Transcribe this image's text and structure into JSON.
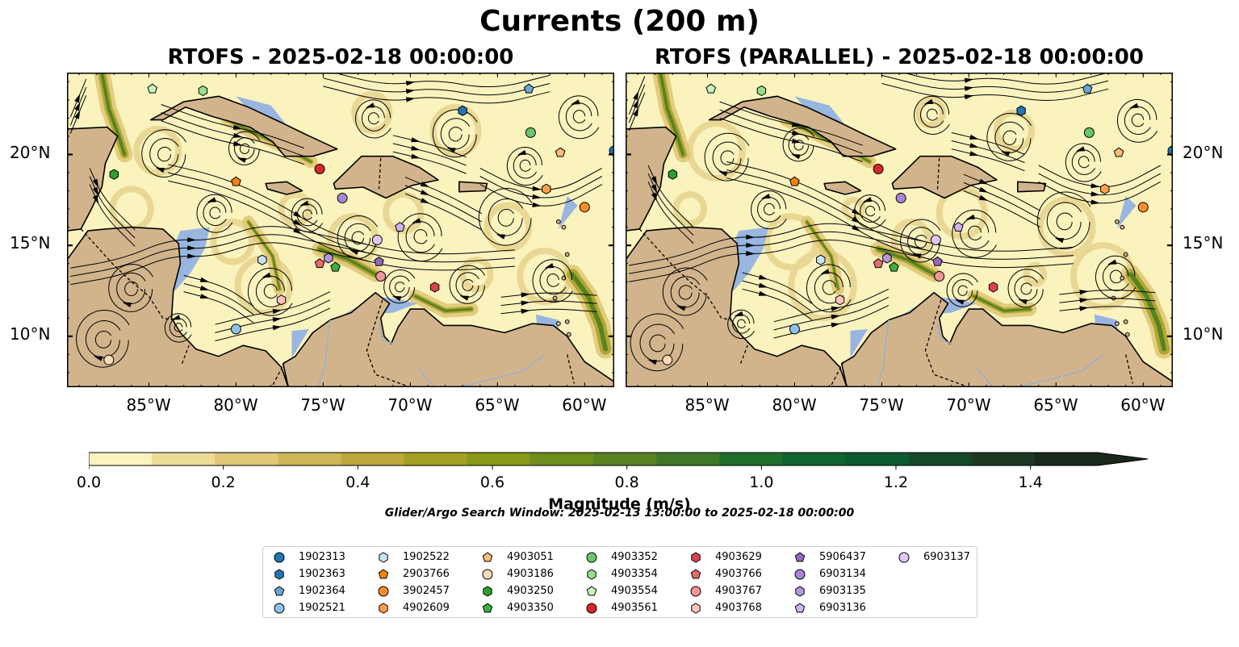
{
  "suptitle": "Currents (200 m)",
  "panels": [
    {
      "title": "RTOFS - 2025-02-18 00:00:00"
    },
    {
      "title": "RTOFS (PARALLEL) - 2025-02-18 00:00:00"
    }
  ],
  "axes": {
    "lon_ticks": [
      "85°W",
      "80°W",
      "75°W",
      "70°W",
      "65°W",
      "60°W"
    ],
    "lon_values": [
      -85,
      -80,
      -75,
      -70,
      -65,
      -60
    ],
    "lat_ticks": [
      "20°N",
      "15°N",
      "10°N"
    ],
    "lat_values": [
      20,
      15,
      10
    ],
    "lon_range": [
      -89.7,
      -58.3
    ],
    "lat_range": [
      7.2,
      24.5
    ]
  },
  "colorbar": {
    "title": "Magnitude (m/s)",
    "ticks": [
      "0.0",
      "0.2",
      "0.4",
      "0.6",
      "0.8",
      "1.0",
      "1.2",
      "1.4"
    ],
    "tick_values": [
      0,
      0.2,
      0.4,
      0.6,
      0.8,
      1.0,
      1.2,
      1.4
    ],
    "range": [
      0,
      1.5
    ],
    "extend": "max",
    "colors": [
      "#faf3be",
      "#eddc98",
      "#e0c878",
      "#cfb656",
      "#bca83a",
      "#a3a025",
      "#88981a",
      "#6f8d1d",
      "#578222",
      "#3f7727",
      "#216e2c",
      "#0f6431",
      "#0d5a30",
      "#15482b",
      "#1e3824",
      "#19281a"
    ]
  },
  "search_window": "Glider/Argo Search Window: 2025-02-13 13:00:00 to 2025-02-18 00:00:00",
  "map_colors": {
    "ocean_low": "#faf3be",
    "land": "#d2b48c",
    "shallow": "#98b6e0",
    "rivers": "#9ab0c8"
  },
  "floats": [
    {
      "id": "1902313",
      "marker": "circle",
      "color": "#1f77b4",
      "lon": -58.3,
      "lat": 20.2
    },
    {
      "id": "1902363",
      "marker": "hexagon",
      "color": "#1f77b4",
      "lon": -67.0,
      "lat": 22.4
    },
    {
      "id": "1902364",
      "marker": "pentagon",
      "color": "#6aa6d8",
      "lon": -63.2,
      "lat": 23.6
    },
    {
      "id": "1902521",
      "marker": "circle",
      "color": "#8cc2e8",
      "lon": -80.0,
      "lat": 10.4
    },
    {
      "id": "1902522",
      "marker": "hexagon",
      "color": "#c9e3f5",
      "lon": -78.5,
      "lat": 14.2
    },
    {
      "id": "2903766",
      "marker": "pentagon",
      "color": "#ff7f0e",
      "lon": -80.0,
      "lat": 18.5
    },
    {
      "id": "3902457",
      "marker": "circle",
      "color": "#ff8c2a",
      "lon": -60.0,
      "lat": 17.1
    },
    {
      "id": "4902609",
      "marker": "hexagon",
      "color": "#ffa04a",
      "lon": -62.2,
      "lat": 18.1
    },
    {
      "id": "4903051",
      "marker": "pentagon",
      "color": "#ffbb78",
      "lon": -61.4,
      "lat": 20.1
    },
    {
      "id": "4903186",
      "marker": "circle",
      "color": "#ffd9b5",
      "lon": -87.3,
      "lat": 8.7
    },
    {
      "id": "4903250",
      "marker": "hexagon",
      "color": "#2ca02c",
      "lon": -87.0,
      "lat": 18.9
    },
    {
      "id": "4903350",
      "marker": "pentagon",
      "color": "#3cb03c",
      "lon": -74.3,
      "lat": 13.8
    },
    {
      "id": "4903352",
      "marker": "circle",
      "color": "#6cc46c",
      "lon": -63.1,
      "lat": 21.2
    },
    {
      "id": "4903354",
      "marker": "hexagon",
      "color": "#98df8a",
      "lon": -81.9,
      "lat": 23.5
    },
    {
      "id": "4903554",
      "marker": "pentagon",
      "color": "#c8f5c0",
      "lon": -84.8,
      "lat": 23.6
    },
    {
      "id": "4903561",
      "marker": "circle",
      "color": "#d62728",
      "lon": -75.2,
      "lat": 19.2
    },
    {
      "id": "4903629",
      "marker": "hexagon",
      "color": "#d9444d",
      "lon": -68.6,
      "lat": 12.7
    },
    {
      "id": "4903766",
      "marker": "pentagon",
      "color": "#e66a6a",
      "lon": -75.2,
      "lat": 14.0
    },
    {
      "id": "4903767",
      "marker": "circle",
      "color": "#f0959a",
      "lon": -71.7,
      "lat": 13.3
    },
    {
      "id": "4903768",
      "marker": "hexagon",
      "color": "#ffc4c0",
      "lon": -77.4,
      "lat": 12.0
    },
    {
      "id": "5906437",
      "marker": "pentagon",
      "color": "#9467bd",
      "lon": -71.8,
      "lat": 14.1
    },
    {
      "id": "6903134",
      "marker": "circle",
      "color": "#a883d6",
      "lon": -73.9,
      "lat": 17.6
    },
    {
      "id": "6903135",
      "marker": "hexagon",
      "color": "#b596dc",
      "lon": -74.7,
      "lat": 14.3
    },
    {
      "id": "6903136",
      "marker": "pentagon",
      "color": "#d2b2ee",
      "lon": -70.6,
      "lat": 16.0
    },
    {
      "id": "6903137",
      "marker": "circle",
      "color": "#e2c6f8",
      "lon": -71.9,
      "lat": 15.3
    }
  ]
}
